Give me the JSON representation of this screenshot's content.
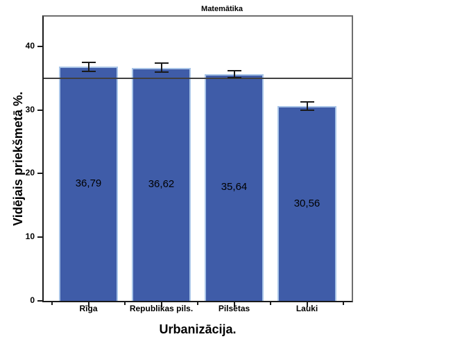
{
  "chart_data": {
    "type": "bar",
    "title": "Matemātika",
    "xlabel": "Urbanizācija.",
    "ylabel": "Vidējais priekšmetā %.",
    "categories": [
      "Rīga",
      "Republikas pils.",
      "Pilsētas",
      "Lauki"
    ],
    "values": [
      36.79,
      36.62,
      35.64,
      30.56
    ],
    "value_labels": [
      "36,79",
      "36,62",
      "35,64",
      "30,56"
    ],
    "error_bars_plus_minus": [
      0.7,
      0.7,
      0.55,
      0.65
    ],
    "reference_line_y": 35,
    "yticks": [
      0,
      10,
      20,
      30,
      40
    ],
    "ylim": [
      0,
      44.65
    ],
    "grid": false,
    "legend": "none",
    "colors": {
      "bar_fill": "#3f5ca8",
      "bar_edge": "#a9c5e8",
      "frame": "#6e6e6e",
      "axis": "#1a1a1a",
      "reference_line": "#404040",
      "error_bar": "#1a1a1a",
      "text": "#000000",
      "background": "#ffffff"
    }
  }
}
